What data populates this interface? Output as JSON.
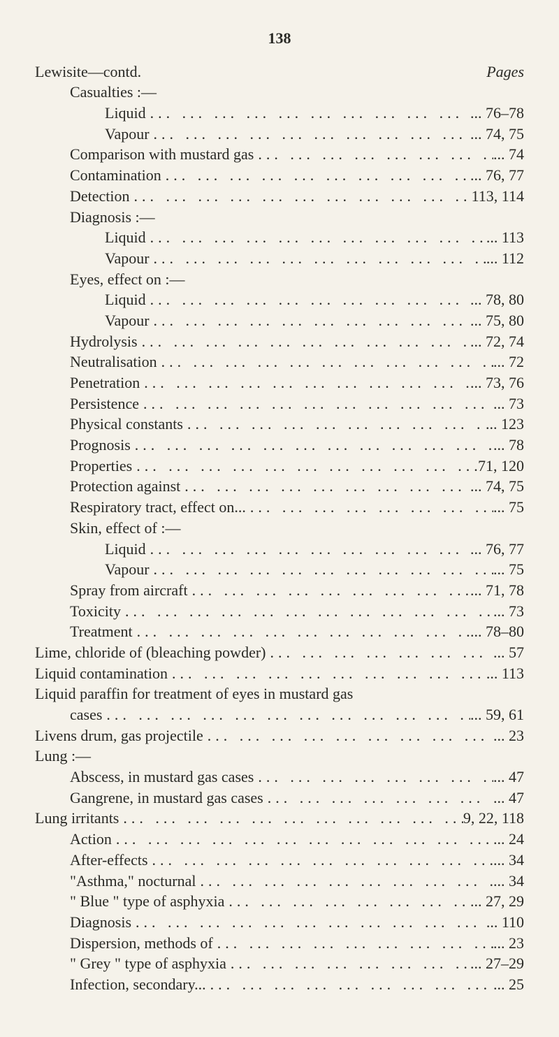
{
  "pageNumber": "138",
  "headingPagesLabel": "Pages",
  "dotFill": "...   ...   ...   ...   ...   ...   ...   ...   ...   ...   ...   ...",
  "entries": [
    {
      "label": "Lewisite—contd.",
      "pages": "",
      "indent": 0,
      "isHeading": true,
      "showDots": false,
      "showHeadingPages": true
    },
    {
      "label": "Casualties :—",
      "pages": "",
      "indent": 1,
      "showDots": false
    },
    {
      "label": "Liquid",
      "pages": "... 76–78",
      "indent": 2,
      "showDots": true
    },
    {
      "label": "Vapour",
      "pages": "... 74, 75",
      "indent": 2,
      "showDots": true
    },
    {
      "label": "Comparison with mustard gas",
      "pages": "...      74",
      "indent": 1,
      "showDots": true
    },
    {
      "label": "Contamination",
      "pages": "... 76, 77",
      "indent": 1,
      "showDots": true
    },
    {
      "label": "Detection",
      "pages": "113, 114",
      "indent": 1,
      "showDots": true
    },
    {
      "label": "Diagnosis :—",
      "pages": "",
      "indent": 1,
      "showDots": false
    },
    {
      "label": "Liquid",
      "pages": "...    113",
      "indent": 2,
      "showDots": true
    },
    {
      "label": "Vapour",
      "pages": "...    112",
      "indent": 2,
      "showDots": true
    },
    {
      "label": "Eyes, effect on :—",
      "pages": "",
      "indent": 1,
      "showDots": false
    },
    {
      "label": "Liquid",
      "pages": "... 78, 80",
      "indent": 2,
      "showDots": true
    },
    {
      "label": "Vapour",
      "pages": "... 75, 80",
      "indent": 2,
      "showDots": true
    },
    {
      "label": "Hydrolysis",
      "pages": "... 72, 74",
      "indent": 1,
      "showDots": true
    },
    {
      "label": "Neutralisation",
      "pages": "...      72",
      "indent": 1,
      "showDots": true
    },
    {
      "label": "Penetration",
      "pages": "... 73, 76",
      "indent": 1,
      "showDots": true
    },
    {
      "label": "Persistence",
      "pages": "...      73",
      "indent": 1,
      "showDots": true
    },
    {
      "label": "Physical constants",
      "pages": "...    123",
      "indent": 1,
      "showDots": true
    },
    {
      "label": "Prognosis",
      "pages": "...      78",
      "indent": 1,
      "showDots": true
    },
    {
      "label": "Properties",
      "pages": "71, 120",
      "indent": 1,
      "showDots": true
    },
    {
      "label": "Protection against",
      "pages": "... 74, 75",
      "indent": 1,
      "showDots": true
    },
    {
      "label": "Respiratory tract, effect on...",
      "pages": "...      75",
      "indent": 1,
      "showDots": true
    },
    {
      "label": "Skin, effect of :—",
      "pages": "",
      "indent": 1,
      "showDots": false
    },
    {
      "label": "Liquid",
      "pages": "... 76, 77",
      "indent": 2,
      "showDots": true
    },
    {
      "label": "Vapour",
      "pages": "...      75",
      "indent": 2,
      "showDots": true
    },
    {
      "label": "Spray from aircraft",
      "pages": "... 71, 78",
      "indent": 1,
      "showDots": true
    },
    {
      "label": "Toxicity",
      "pages": "...      73",
      "indent": 1,
      "showDots": true
    },
    {
      "label": "Treatment",
      "pages": "... 78–80",
      "indent": 1,
      "showDots": true
    },
    {
      "label": "Lime, chloride of (bleaching powder)",
      "pages": "...      57",
      "indent": 0,
      "showDots": true
    },
    {
      "label": "Liquid contamination",
      "pages": "...    113",
      "indent": 0,
      "showDots": true
    },
    {
      "label": "Liquid paraffin for treatment of eyes in mustard gas",
      "pages": "",
      "indent": 0,
      "showDots": false
    },
    {
      "label": "cases",
      "pages": "... 59, 61",
      "indent": 1,
      "showDots": true
    },
    {
      "label": "Livens drum, gas projectile",
      "pages": "...      23",
      "indent": 0,
      "showDots": true
    },
    {
      "label": "Lung :—",
      "pages": "",
      "indent": 0,
      "showDots": false
    },
    {
      "label": "Abscess, in mustard gas cases",
      "pages": "...      47",
      "indent": 1,
      "showDots": true
    },
    {
      "label": "Gangrene, in mustard gas cases",
      "pages": "...      47",
      "indent": 1,
      "showDots": true
    },
    {
      "label": "Lung irritants",
      "pages": "9, 22, 118",
      "indent": 0,
      "showDots": true
    },
    {
      "label": "Action",
      "pages": "...      24",
      "indent": 1,
      "showDots": true
    },
    {
      "label": "After-effects",
      "pages": "...      34",
      "indent": 1,
      "showDots": true
    },
    {
      "label": "\"Asthma,\" nocturnal",
      "pages": "...      34",
      "indent": 1,
      "showDots": true
    },
    {
      "label": "\" Blue \" type of asphyxia",
      "pages": "... 27, 29",
      "indent": 1,
      "showDots": true
    },
    {
      "label": "Diagnosis",
      "pages": "...    110",
      "indent": 1,
      "showDots": true
    },
    {
      "label": "Dispersion, methods of",
      "pages": "...      23",
      "indent": 1,
      "showDots": true
    },
    {
      "label": "\" Grey \" type of asphyxia",
      "pages": "... 27–29",
      "indent": 1,
      "showDots": true
    },
    {
      "label": "Infection, secondary...",
      "pages": "...      25",
      "indent": 1,
      "showDots": true
    }
  ]
}
